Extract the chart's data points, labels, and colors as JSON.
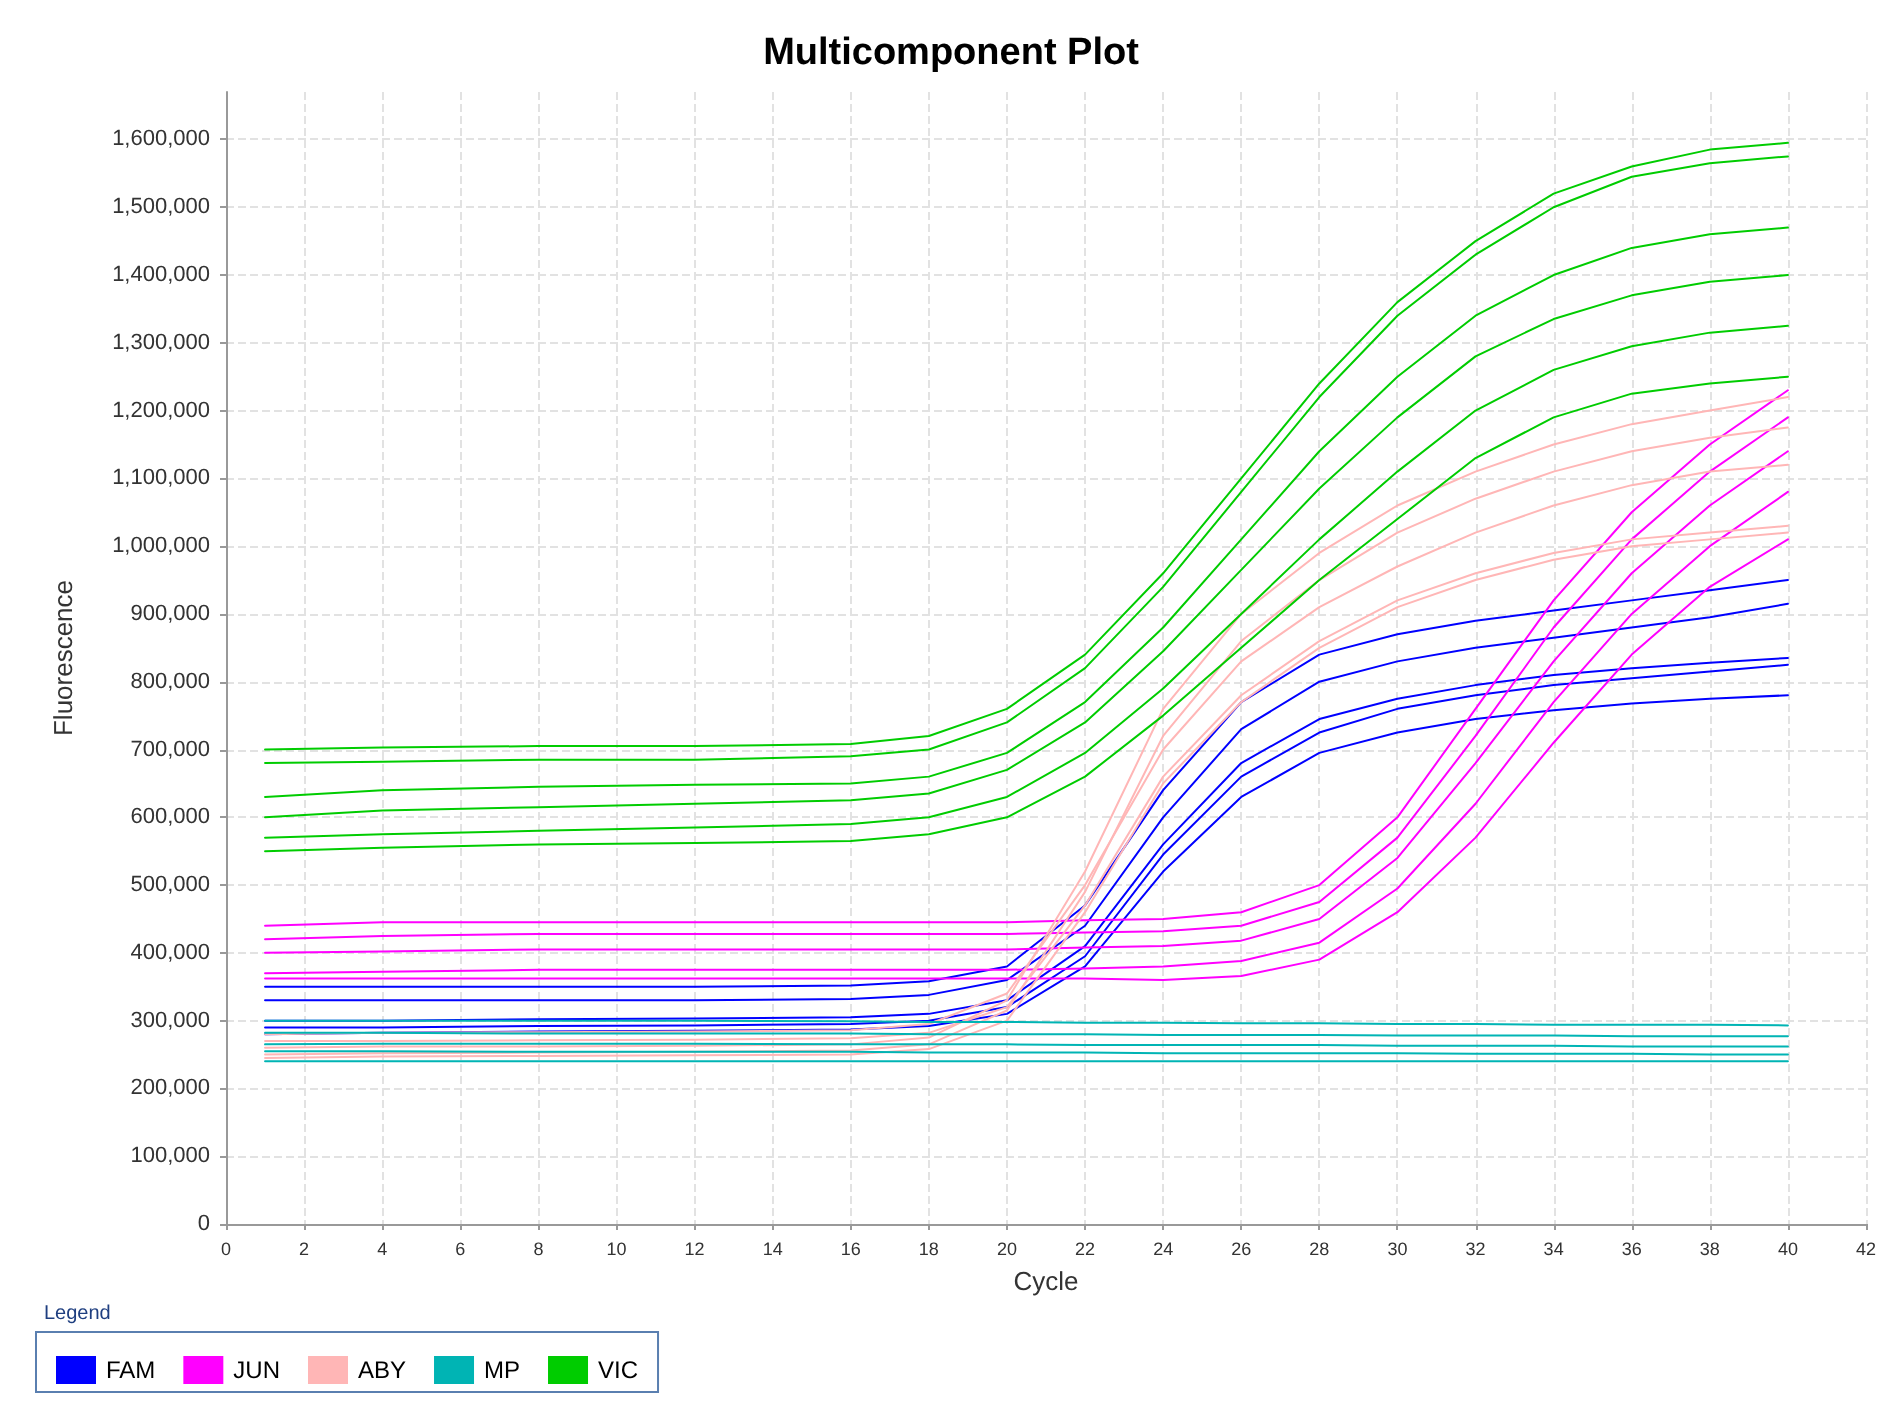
{
  "chart_data": {
    "type": "line",
    "title": "Multicomponent Plot",
    "xlabel": "Cycle",
    "ylabel": "Fluorescence",
    "legend_title": "Legend",
    "legend": "bottom",
    "grid": true,
    "marker": "none",
    "line_style": "solid",
    "x": [
      1,
      4,
      8,
      12,
      16,
      18,
      20,
      22,
      24,
      26,
      28,
      30,
      32,
      34,
      36,
      38,
      40
    ],
    "xlim": [
      0,
      42
    ],
    "xticks": [
      0,
      2,
      4,
      6,
      8,
      10,
      12,
      14,
      16,
      18,
      20,
      22,
      24,
      26,
      28,
      30,
      32,
      34,
      36,
      38,
      40,
      42
    ],
    "ylim": [
      0,
      1670000
    ],
    "yticks": [
      0,
      {
        "value": 100000,
        "label": "100,000"
      },
      {
        "value": 200000,
        "label": "200,000"
      },
      {
        "value": 300000,
        "label": "300,000"
      },
      {
        "value": 400000,
        "label": "400,000"
      },
      {
        "value": 500000,
        "label": "500,000"
      },
      {
        "value": 600000,
        "label": "600,000"
      },
      {
        "value": 700000,
        "label": "700,000"
      },
      {
        "value": 800000,
        "label": "800,000"
      },
      {
        "value": 900000,
        "label": "900,000"
      },
      {
        "value": 1000000,
        "label": "1,000,000"
      },
      {
        "value": 1100000,
        "label": "1,100,000"
      },
      {
        "value": 1200000,
        "label": "1,200,000"
      },
      {
        "value": 1300000,
        "label": "1,300,000"
      },
      {
        "value": 1400000,
        "label": "1,400,000"
      },
      {
        "value": 1500000,
        "label": "1,500,000"
      },
      {
        "value": 1600000,
        "label": "1,600,000"
      }
    ],
    "series": [
      {
        "name": "FAM",
        "color": "#0000ff",
        "values": [
          350000,
          350000,
          350000,
          350000,
          352000,
          358000,
          380000,
          470000,
          640000,
          770000,
          840000,
          870000,
          890000,
          905000,
          920000,
          935000,
          950000
        ]
      },
      {
        "color": "#0000ff",
        "values": [
          330000,
          330000,
          330000,
          330000,
          332000,
          338000,
          360000,
          440000,
          600000,
          730000,
          800000,
          830000,
          850000,
          865000,
          880000,
          895000,
          915000
        ]
      },
      {
        "color": "#0000ff",
        "values": [
          300000,
          300000,
          302000,
          303000,
          305000,
          310000,
          330000,
          410000,
          560000,
          680000,
          745000,
          775000,
          795000,
          810000,
          820000,
          828000,
          835000
        ]
      },
      {
        "color": "#0000ff",
        "values": [
          290000,
          290000,
          292000,
          293000,
          295000,
          300000,
          320000,
          395000,
          545000,
          660000,
          725000,
          760000,
          780000,
          795000,
          805000,
          815000,
          825000
        ]
      },
      {
        "color": "#0000ff",
        "values": [
          280000,
          282000,
          284000,
          285000,
          287000,
          292000,
          310000,
          380000,
          520000,
          630000,
          695000,
          725000,
          745000,
          758000,
          768000,
          775000,
          780000
        ]
      },
      {
        "name": "JUN",
        "color": "#ff00ff",
        "values": [
          440000,
          445000,
          445000,
          445000,
          445000,
          445000,
          445000,
          448000,
          450000,
          460000,
          500000,
          600000,
          760000,
          920000,
          1050000,
          1150000,
          1230000
        ]
      },
      {
        "color": "#ff00ff",
        "values": [
          420000,
          425000,
          428000,
          428000,
          428000,
          428000,
          428000,
          430000,
          432000,
          440000,
          475000,
          570000,
          720000,
          880000,
          1010000,
          1110000,
          1190000
        ]
      },
      {
        "color": "#ff00ff",
        "values": [
          400000,
          402000,
          405000,
          405000,
          405000,
          405000,
          405000,
          408000,
          410000,
          418000,
          450000,
          540000,
          680000,
          830000,
          960000,
          1060000,
          1140000
        ]
      },
      {
        "color": "#ff00ff",
        "values": [
          370000,
          372000,
          375000,
          375000,
          375000,
          375000,
          375000,
          377000,
          380000,
          388000,
          415000,
          495000,
          620000,
          770000,
          900000,
          1000000,
          1080000
        ]
      },
      {
        "color": "#ff00ff",
        "values": [
          362000,
          362000,
          362000,
          362000,
          362000,
          362000,
          362000,
          362000,
          360000,
          366000,
          390000,
          460000,
          570000,
          710000,
          840000,
          940000,
          1010000
        ]
      },
      {
        "name": "ABY",
        "color": "#ffb6b6",
        "values": [
          260000,
          262000,
          262000,
          263000,
          265000,
          275000,
          330000,
          520000,
          760000,
          900000,
          990000,
          1060000,
          1110000,
          1150000,
          1180000,
          1200000,
          1220000
        ]
      },
      {
        "color": "#ffb6b6",
        "values": [
          250000,
          252000,
          253000,
          254000,
          256000,
          265000,
          315000,
          490000,
          720000,
          860000,
          950000,
          1020000,
          1070000,
          1110000,
          1140000,
          1160000,
          1175000
        ]
      },
      {
        "color": "#ffb6b6",
        "values": [
          280000,
          282000,
          283000,
          284000,
          286000,
          295000,
          340000,
          500000,
          700000,
          830000,
          910000,
          970000,
          1020000,
          1060000,
          1090000,
          1110000,
          1120000
        ]
      },
      {
        "color": "#ffb6b6",
        "values": [
          270000,
          270000,
          271000,
          272000,
          274000,
          282000,
          320000,
          470000,
          660000,
          780000,
          860000,
          920000,
          960000,
          990000,
          1010000,
          1020000,
          1030000
        ]
      },
      {
        "color": "#ffb6b6",
        "values": [
          245000,
          247000,
          248000,
          249000,
          250000,
          258000,
          300000,
          460000,
          650000,
          770000,
          850000,
          910000,
          950000,
          980000,
          1000000,
          1010000,
          1020000
        ]
      },
      {
        "name": "MP",
        "color": "#00b4b4",
        "values": [
          300000,
          300000,
          300000,
          300000,
          299000,
          298000,
          298000,
          297000,
          297000,
          296000,
          296000,
          295000,
          295000,
          294000,
          294000,
          294000,
          293000
        ]
      },
      {
        "color": "#00b4b4",
        "values": [
          282000,
          282000,
          281000,
          281000,
          281000,
          280000,
          280000,
          280000,
          279000,
          279000,
          279000,
          278000,
          278000,
          278000,
          277000,
          277000,
          277000
        ]
      },
      {
        "color": "#00b4b4",
        "values": [
          265000,
          266000,
          266000,
          266000,
          265000,
          265000,
          265000,
          264000,
          264000,
          264000,
          264000,
          263000,
          263000,
          263000,
          262000,
          262000,
          262000
        ]
      },
      {
        "color": "#00b4b4",
        "values": [
          255000,
          255000,
          254000,
          254000,
          254000,
          253000,
          253000,
          253000,
          252000,
          252000,
          252000,
          252000,
          251000,
          251000,
          251000,
          250000,
          250000
        ]
      },
      {
        "color": "#00b4b4",
        "values": [
          240000,
          240000,
          240000,
          240000,
          240000,
          240000,
          240000,
          240000,
          240000,
          240000,
          240000,
          240000,
          240000,
          240000,
          240000,
          240000,
          240000
        ]
      },
      {
        "name": "VIC",
        "color": "#00cc00",
        "values": [
          700000,
          703000,
          705000,
          705000,
          708000,
          720000,
          760000,
          840000,
          960000,
          1100000,
          1240000,
          1360000,
          1450000,
          1520000,
          1560000,
          1585000,
          1595000
        ]
      },
      {
        "color": "#00cc00",
        "values": [
          680000,
          682000,
          685000,
          685000,
          690000,
          700000,
          740000,
          820000,
          940000,
          1080000,
          1220000,
          1340000,
          1430000,
          1500000,
          1545000,
          1565000,
          1575000
        ]
      },
      {
        "color": "#00cc00",
        "values": [
          630000,
          640000,
          645000,
          648000,
          650000,
          660000,
          695000,
          770000,
          880000,
          1010000,
          1140000,
          1250000,
          1340000,
          1400000,
          1440000,
          1460000,
          1470000
        ]
      },
      {
        "color": "#00cc00",
        "values": [
          600000,
          610000,
          615000,
          620000,
          625000,
          635000,
          670000,
          740000,
          845000,
          965000,
          1085000,
          1190000,
          1280000,
          1335000,
          1370000,
          1390000,
          1400000
        ]
      },
      {
        "color": "#00cc00",
        "values": [
          570000,
          575000,
          580000,
          585000,
          590000,
          600000,
          630000,
          695000,
          790000,
          900000,
          1010000,
          1110000,
          1200000,
          1260000,
          1295000,
          1315000,
          1325000
        ]
      },
      {
        "color": "#00cc00",
        "values": [
          550000,
          555000,
          560000,
          562000,
          565000,
          575000,
          600000,
          660000,
          750000,
          850000,
          950000,
          1040000,
          1130000,
          1190000,
          1225000,
          1240000,
          1250000
        ]
      }
    ]
  }
}
